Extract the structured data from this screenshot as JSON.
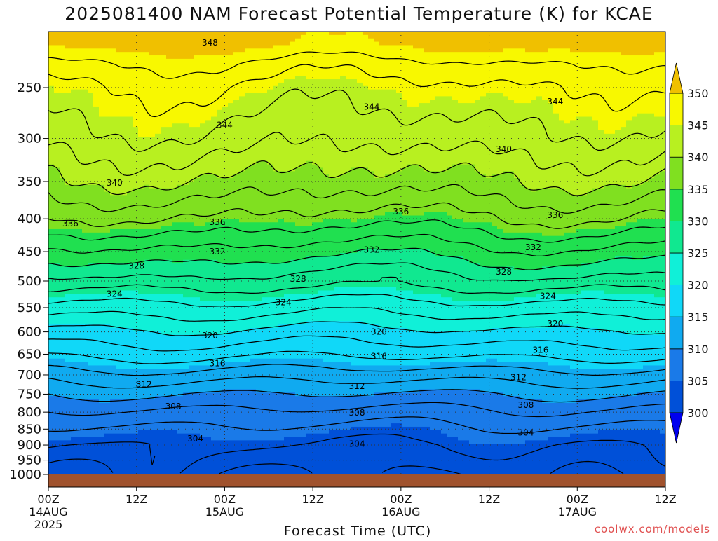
{
  "chart_data": {
    "type": "contour",
    "title": "2025081400 NAM Forecast Potential Temperature (K) for KCAE",
    "xlabel": "Forecast Time (UTC)",
    "ylabel": "",
    "credit": "coolwx.com/models",
    "x_range_hours": [
      0,
      84
    ],
    "x_ticks": [
      {
        "hour": 0,
        "label": "00Z",
        "date": "14AUG",
        "year": "2025"
      },
      {
        "hour": 12,
        "label": "12Z",
        "date": "",
        "year": ""
      },
      {
        "hour": 24,
        "label": "00Z",
        "date": "15AUG",
        "year": ""
      },
      {
        "hour": 36,
        "label": "12Z",
        "date": "",
        "year": ""
      },
      {
        "hour": 48,
        "label": "00Z",
        "date": "16AUG",
        "year": ""
      },
      {
        "hour": 60,
        "label": "12Z",
        "date": "",
        "year": ""
      },
      {
        "hour": 72,
        "label": "00Z",
        "date": "17AUG",
        "year": ""
      },
      {
        "hour": 84,
        "label": "12Z",
        "date": "",
        "year": ""
      }
    ],
    "y_axis": "pressure (hPa)",
    "y_range": [
      1000,
      200
    ],
    "y_ticks": [
      250,
      300,
      350,
      400,
      450,
      500,
      550,
      600,
      650,
      700,
      750,
      800,
      850,
      900,
      950,
      1000
    ],
    "colorbar": {
      "levels": [
        300,
        305,
        310,
        315,
        320,
        325,
        330,
        335,
        340,
        345,
        350
      ],
      "colors": [
        "#0000ee",
        "#0050d8",
        "#1a7ae8",
        "#10aaf0",
        "#10d8f8",
        "#10f0d8",
        "#10e890",
        "#20e050",
        "#80e020",
        "#b8f020",
        "#f8f800",
        "#f0c000"
      ]
    },
    "contour_levels": [
      300,
      302,
      304,
      306,
      308,
      310,
      312,
      314,
      316,
      318,
      320,
      322,
      324,
      326,
      328,
      330,
      332,
      334,
      336,
      338,
      340,
      342,
      344,
      346,
      348
    ],
    "contour_labels": [
      {
        "value": 348,
        "hour": 22,
        "p": 213
      },
      {
        "value": 344,
        "hour": 44,
        "p": 268
      },
      {
        "value": 344,
        "hour": 69,
        "p": 263
      },
      {
        "value": 344,
        "hour": 24,
        "p": 286
      },
      {
        "value": 340,
        "hour": 62,
        "p": 312
      },
      {
        "value": 340,
        "hour": 9,
        "p": 352
      },
      {
        "value": 336,
        "hour": 48,
        "p": 390
      },
      {
        "value": 336,
        "hour": 69,
        "p": 395
      },
      {
        "value": 336,
        "hour": 3,
        "p": 407
      },
      {
        "value": 336,
        "hour": 23,
        "p": 405
      },
      {
        "value": 332,
        "hour": 44,
        "p": 447
      },
      {
        "value": 332,
        "hour": 66,
        "p": 443
      },
      {
        "value": 332,
        "hour": 23,
        "p": 450
      },
      {
        "value": 328,
        "hour": 12,
        "p": 474
      },
      {
        "value": 328,
        "hour": 34,
        "p": 496
      },
      {
        "value": 328,
        "hour": 62,
        "p": 484
      },
      {
        "value": 324,
        "hour": 9,
        "p": 524
      },
      {
        "value": 324,
        "hour": 32,
        "p": 540
      },
      {
        "value": 324,
        "hour": 68,
        "p": 528
      },
      {
        "value": 320,
        "hour": 22,
        "p": 608
      },
      {
        "value": 320,
        "hour": 45,
        "p": 600
      },
      {
        "value": 320,
        "hour": 69,
        "p": 583
      },
      {
        "value": 316,
        "hour": 23,
        "p": 672
      },
      {
        "value": 316,
        "hour": 45,
        "p": 655
      },
      {
        "value": 316,
        "hour": 67,
        "p": 640
      },
      {
        "value": 312,
        "hour": 13,
        "p": 724
      },
      {
        "value": 312,
        "hour": 42,
        "p": 729
      },
      {
        "value": 312,
        "hour": 64,
        "p": 706
      },
      {
        "value": 308,
        "hour": 17,
        "p": 784
      },
      {
        "value": 308,
        "hour": 42,
        "p": 802
      },
      {
        "value": 308,
        "hour": 65,
        "p": 780
      },
      {
        "value": 304,
        "hour": 20,
        "p": 880
      },
      {
        "value": 304,
        "hour": 42,
        "p": 897
      },
      {
        "value": 304,
        "hour": 65,
        "p": 861
      }
    ]
  }
}
